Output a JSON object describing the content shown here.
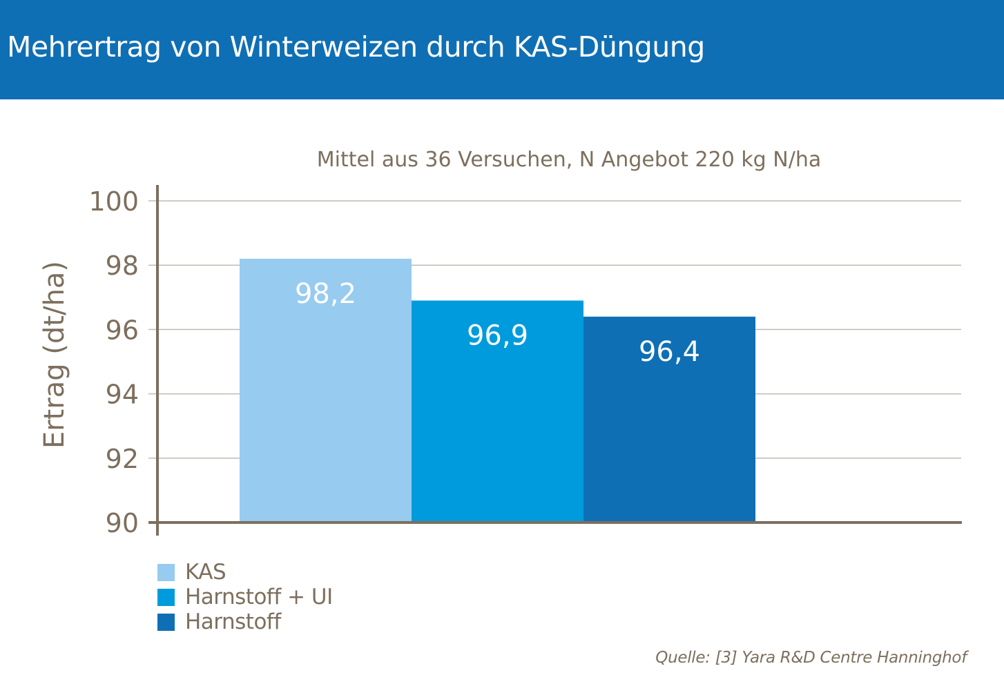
{
  "header": {
    "title": "Mehrertrag von Winterweizen durch KAS-Düngung",
    "background": "#0f6fb5"
  },
  "chart_data": {
    "type": "bar",
    "subtitle": "Mittel aus 36 Versuchen, N Angebot 220 kg N/ha",
    "ylabel": "Ertrag (dt/ha)",
    "xlabel": "",
    "ylim": [
      90,
      100
    ],
    "yticks": [
      90,
      92,
      94,
      96,
      98,
      100
    ],
    "grid": true,
    "categories": [
      "KAS",
      "Harnstoff + UI",
      "Harnstoff"
    ],
    "values": [
      98.2,
      96.9,
      96.4
    ],
    "value_labels": [
      "98,2",
      "96,9",
      "96,4"
    ],
    "colors": [
      "#97cbf0",
      "#009bdc",
      "#0f6fb5"
    ],
    "legend_placement": "bottom-left"
  },
  "source": "Quelle: [3] Yara R&D Centre Hanninghof"
}
